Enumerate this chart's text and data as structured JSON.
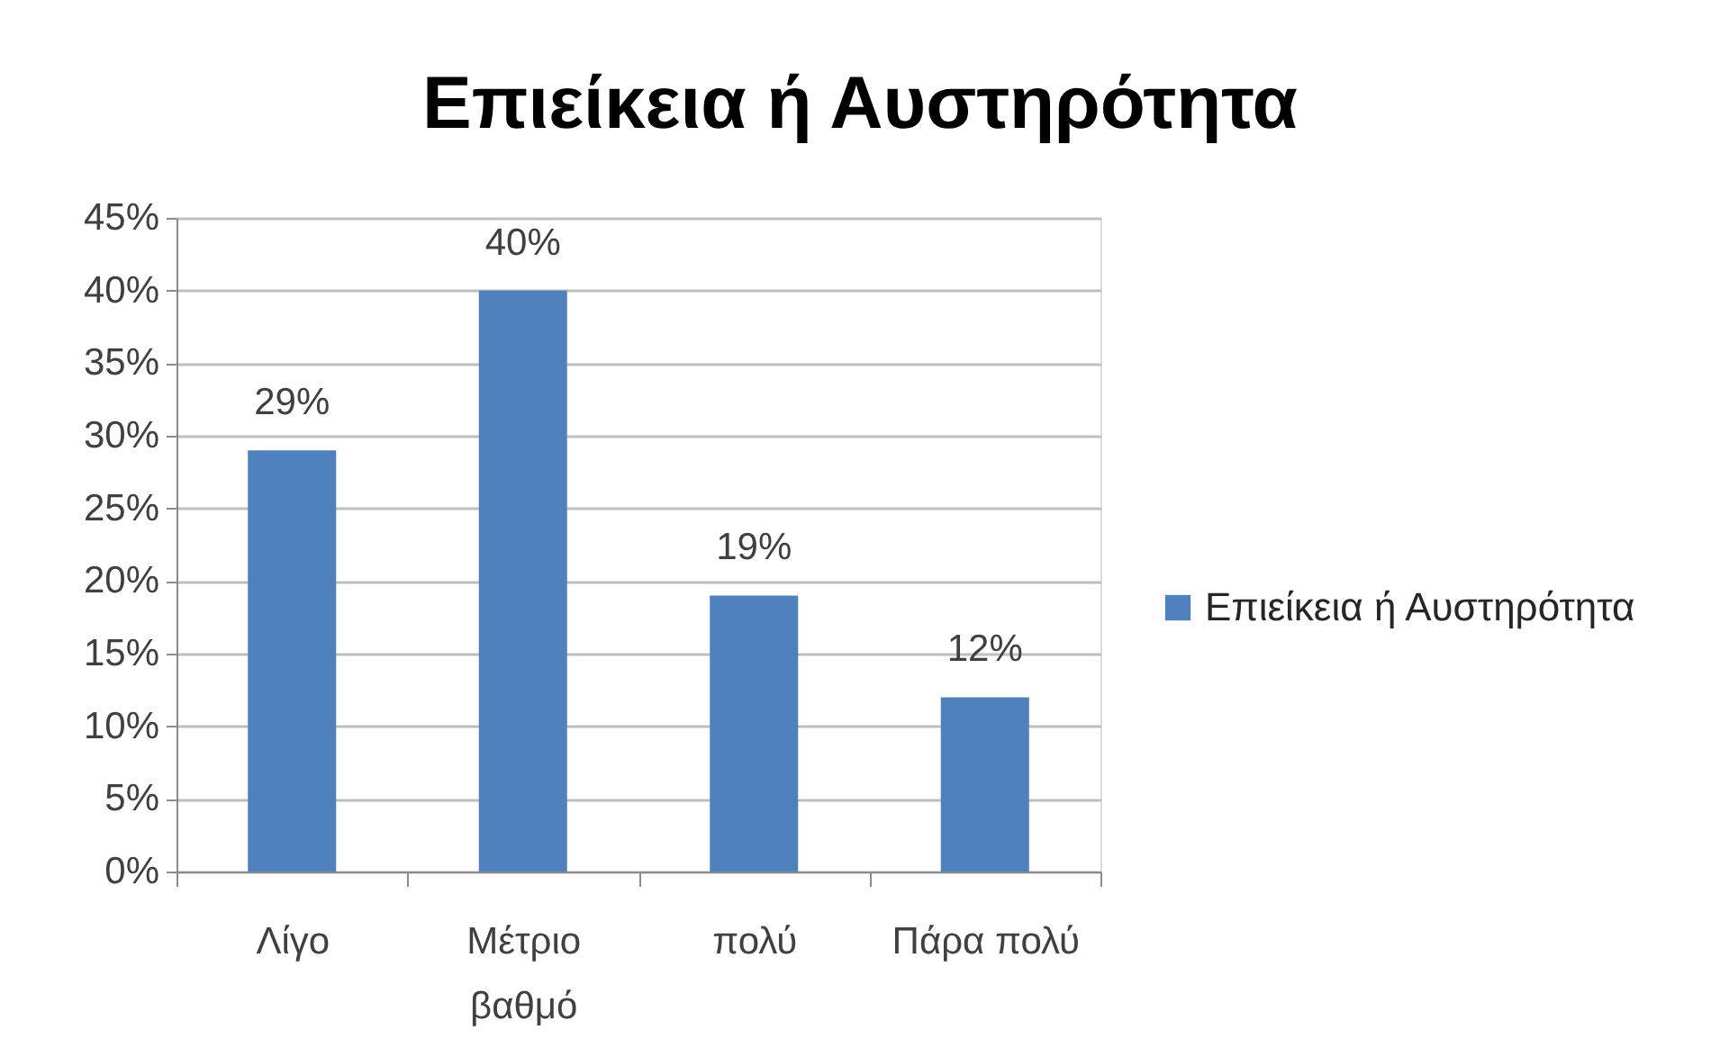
{
  "chart_data": {
    "type": "bar",
    "title": "Επιείκεια ή Αυστηρότητα",
    "categories": [
      "Λίγο",
      "Μέτριο βαθμό",
      "πολύ",
      "Πάρα πολύ"
    ],
    "series": [
      {
        "name": "Επιείκεια ή Αυστηρότητα",
        "color": "#4f81bd",
        "values": [
          29,
          40,
          19,
          12
        ],
        "value_labels": [
          "29%",
          "40%",
          "19%",
          "12%"
        ]
      }
    ],
    "ylim": [
      0,
      45
    ],
    "yticks": [
      {
        "value": 0,
        "label": "0%"
      },
      {
        "value": 5,
        "label": "5%"
      },
      {
        "value": 10,
        "label": "10%"
      },
      {
        "value": 15,
        "label": "15%"
      },
      {
        "value": 20,
        "label": "20%"
      },
      {
        "value": 25,
        "label": "25%"
      },
      {
        "value": 30,
        "label": "30%"
      },
      {
        "value": 35,
        "label": "35%"
      },
      {
        "value": 40,
        "label": "40%"
      },
      {
        "value": 45,
        "label": "45%"
      }
    ],
    "grid": "y",
    "legend": "right"
  }
}
